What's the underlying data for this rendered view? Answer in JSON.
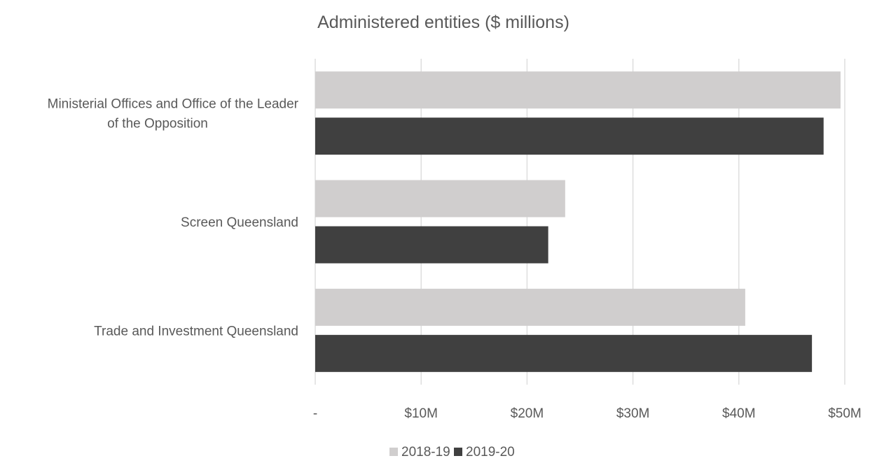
{
  "chart_data": {
    "type": "bar",
    "orientation": "horizontal",
    "title": "Administered entities ($ millions)",
    "categories": [
      "Ministerial Offices and Office of the Leader of the Opposition",
      "Screen Queensland",
      "Trade and Investment Queensland"
    ],
    "category_lines": [
      [
        "Ministerial Offices and Office of the Leader",
        "of the Opposition"
      ],
      [
        "Screen Queensland"
      ],
      [
        "Trade and Investment Queensland"
      ]
    ],
    "series": [
      {
        "name": "2018-19",
        "color": "#d0cece",
        "values": [
          49.6,
          23.6,
          40.6
        ]
      },
      {
        "name": "2019-20",
        "color": "#404040",
        "values": [
          48.0,
          22.0,
          46.9
        ]
      }
    ],
    "xlim": [
      0,
      50
    ],
    "x_ticks": [
      0,
      10,
      20,
      30,
      40,
      50
    ],
    "x_tick_labels": [
      "-",
      "$10M",
      "$20M",
      "$30M",
      "$40M",
      "$50M"
    ],
    "grid": true,
    "legend_position": "bottom"
  }
}
